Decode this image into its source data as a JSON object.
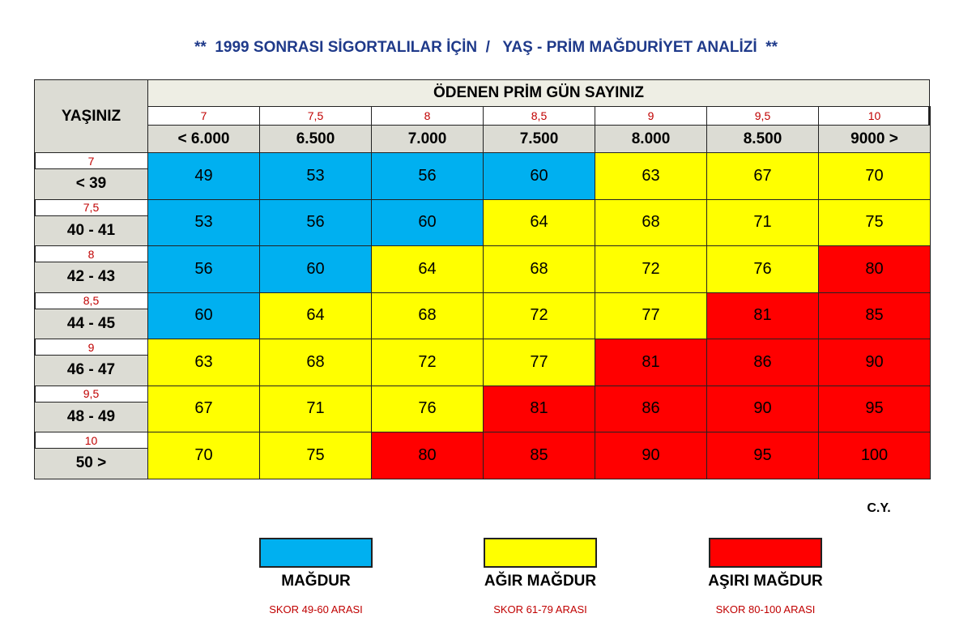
{
  "title": "**  1999 SONRASI SİGORTALILAR İÇİN  /   YAŞ - PRİM MAĞDURİYET ANALİZİ  **",
  "table": {
    "corner": "YAŞINIZ",
    "header": "ÖDENEN PRİM GÜN SAYINIZ",
    "columns": [
      {
        "weight": "7",
        "label": "< 6.000"
      },
      {
        "weight": "7,5",
        "label": "6.500"
      },
      {
        "weight": "8",
        "label": "7.000"
      },
      {
        "weight": "8,5",
        "label": "7.500"
      },
      {
        "weight": "9",
        "label": "8.000"
      },
      {
        "weight": "9,5",
        "label": "8.500"
      },
      {
        "weight": "10",
        "label": "9000 >"
      }
    ],
    "rows": [
      {
        "weight": "7",
        "label": "< 39",
        "cells": [
          49,
          53,
          56,
          60,
          63,
          67,
          70
        ],
        "colors": [
          "#00b0f0",
          "#00b0f0",
          "#00b0f0",
          "#00b0f0",
          "#ffff00",
          "#ffff00",
          "#ffff00"
        ]
      },
      {
        "weight": "7,5",
        "label": "40 - 41",
        "cells": [
          53,
          56,
          60,
          64,
          68,
          71,
          75
        ],
        "colors": [
          "#00b0f0",
          "#00b0f0",
          "#00b0f0",
          "#ffff00",
          "#ffff00",
          "#ffff00",
          "#ffff00"
        ]
      },
      {
        "weight": "8",
        "label": "42 - 43",
        "cells": [
          56,
          60,
          64,
          68,
          72,
          76,
          80
        ],
        "colors": [
          "#00b0f0",
          "#00b0f0",
          "#ffff00",
          "#ffff00",
          "#ffff00",
          "#ffff00",
          "#ff0000"
        ]
      },
      {
        "weight": "8,5",
        "label": "44 - 45",
        "cells": [
          60,
          64,
          68,
          72,
          77,
          81,
          85
        ],
        "colors": [
          "#00b0f0",
          "#ffff00",
          "#ffff00",
          "#ffff00",
          "#ffff00",
          "#ff0000",
          "#ff0000"
        ]
      },
      {
        "weight": "9",
        "label": "46 - 47",
        "cells": [
          63,
          68,
          72,
          77,
          81,
          86,
          90
        ],
        "colors": [
          "#ffff00",
          "#ffff00",
          "#ffff00",
          "#ffff00",
          "#ff0000",
          "#ff0000",
          "#ff0000"
        ]
      },
      {
        "weight": "9,5",
        "label": "48 - 49",
        "cells": [
          67,
          71,
          76,
          81,
          86,
          90,
          95
        ],
        "colors": [
          "#ffff00",
          "#ffff00",
          "#ffff00",
          "#ff0000",
          "#ff0000",
          "#ff0000",
          "#ff0000"
        ]
      },
      {
        "weight": "10",
        "label": "50 >",
        "cells": [
          70,
          75,
          80,
          85,
          90,
          95,
          100
        ],
        "colors": [
          "#ffff00",
          "#ffff00",
          "#ff0000",
          "#ff0000",
          "#ff0000",
          "#ff0000",
          "#ff0000"
        ]
      }
    ]
  },
  "signature": "C.Y.",
  "legend": [
    {
      "label": "MAĞDUR",
      "range": "SKOR 49-60 ARASI",
      "color": "#00b0f0"
    },
    {
      "label": "AĞIR MAĞDUR",
      "range": "SKOR 61-79 ARASI",
      "color": "#ffff00"
    },
    {
      "label": "AŞIRI MAĞDUR",
      "range": "SKOR 80-100 ARASI",
      "color": "#ff0000"
    }
  ]
}
